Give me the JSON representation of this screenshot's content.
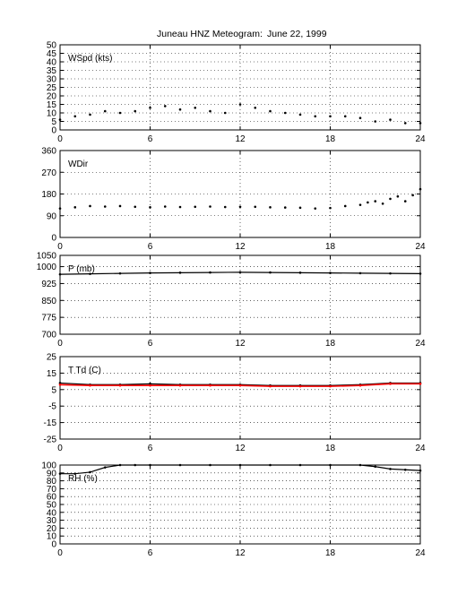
{
  "title": "Juneau HNZ Meteogram:",
  "date": "June 22, 1999",
  "chart_data": [
    {
      "type": "scatter",
      "label": "WSpd (kts)",
      "xlim": [
        0,
        24
      ],
      "ylim": [
        0,
        50
      ],
      "xticks": [
        0,
        6,
        12,
        18,
        24
      ],
      "yticks": [
        0,
        5,
        10,
        15,
        20,
        25,
        30,
        35,
        40,
        45,
        50
      ],
      "grid": true,
      "series": [
        {
          "color": "#000000",
          "x": [
            0,
            1,
            2,
            3,
            4,
            5,
            6,
            7,
            8,
            9,
            10,
            11,
            12,
            13,
            14,
            15,
            16,
            17,
            18,
            19,
            20,
            21,
            22,
            23,
            24
          ],
          "y": [
            6,
            8,
            9,
            11,
            10,
            11,
            13,
            14,
            12,
            13,
            11,
            10,
            15,
            13,
            11,
            10,
            9,
            8,
            8,
            8,
            7,
            5,
            6,
            4,
            4
          ]
        }
      ]
    },
    {
      "type": "scatter",
      "label": "WDir",
      "xlim": [
        0,
        24
      ],
      "ylim": [
        0,
        360
      ],
      "xticks": [
        0,
        6,
        12,
        18,
        24
      ],
      "yticks": [
        0,
        90,
        180,
        270,
        360
      ],
      "grid": true,
      "series": [
        {
          "color": "#000000",
          "x": [
            0,
            1,
            2,
            3,
            4,
            5,
            6,
            7,
            8,
            9,
            10,
            11,
            12,
            13,
            14,
            15,
            16,
            17,
            18,
            19,
            20,
            20.5,
            21,
            21.5,
            22,
            22.5,
            23,
            23.5,
            24
          ],
          "y": [
            120,
            125,
            130,
            128,
            130,
            127,
            125,
            128,
            126,
            127,
            128,
            126,
            127,
            127,
            125,
            124,
            123,
            120,
            122,
            130,
            135,
            145,
            150,
            140,
            160,
            170,
            150,
            175,
            200
          ]
        }
      ]
    },
    {
      "type": "line",
      "label": "P (mb)",
      "xlim": [
        0,
        24
      ],
      "ylim": [
        700,
        1050
      ],
      "xticks": [
        0,
        6,
        12,
        18,
        24
      ],
      "yticks": [
        700,
        775,
        850,
        925,
        1000,
        1050
      ],
      "grid": true,
      "series": [
        {
          "color": "#000000",
          "x": [
            0,
            2,
            4,
            6,
            8,
            10,
            12,
            14,
            16,
            18,
            20,
            22,
            24
          ],
          "y": [
            966,
            968,
            970,
            972,
            973,
            974,
            975,
            974,
            973,
            972,
            971,
            970,
            969
          ]
        }
      ]
    },
    {
      "type": "line",
      "label": "T Td (C)",
      "xlim": [
        0,
        24
      ],
      "ylim": [
        -25,
        25
      ],
      "xticks": [
        0,
        6,
        12,
        18,
        24
      ],
      "yticks": [
        -25,
        -15,
        -5,
        5,
        15,
        25
      ],
      "grid": true,
      "series": [
        {
          "name": "T",
          "color": "#000000",
          "x": [
            0,
            2,
            4,
            6,
            8,
            10,
            12,
            14,
            16,
            18,
            20,
            22,
            24
          ],
          "y": [
            9,
            8,
            8,
            8.5,
            8,
            8,
            8,
            7.5,
            7.5,
            7.5,
            8,
            9,
            9
          ]
        },
        {
          "name": "Td",
          "color": "#ff0000",
          "x": [
            0,
            2,
            4,
            6,
            8,
            10,
            12,
            14,
            16,
            18,
            20,
            22,
            24
          ],
          "y": [
            8,
            7.5,
            7.5,
            7.5,
            7.5,
            7.5,
            7.5,
            7,
            7,
            7,
            7.5,
            8.5,
            8.5
          ]
        }
      ]
    },
    {
      "type": "line",
      "label": "RH (%)",
      "xlim": [
        0,
        24
      ],
      "ylim": [
        0,
        100
      ],
      "xticks": [
        0,
        6,
        12,
        18,
        24
      ],
      "yticks": [
        0,
        10,
        20,
        30,
        40,
        50,
        60,
        70,
        80,
        90,
        100
      ],
      "grid": true,
      "series": [
        {
          "color": "#000000",
          "x": [
            0,
            1,
            2,
            3,
            4,
            5,
            6,
            8,
            10,
            12,
            14,
            16,
            18,
            20,
            21,
            22,
            23,
            24
          ],
          "y": [
            89,
            89,
            91,
            97,
            100,
            100,
            100,
            100,
            100,
            100,
            100,
            100,
            100,
            100,
            98,
            95,
            94,
            93
          ]
        }
      ]
    }
  ]
}
